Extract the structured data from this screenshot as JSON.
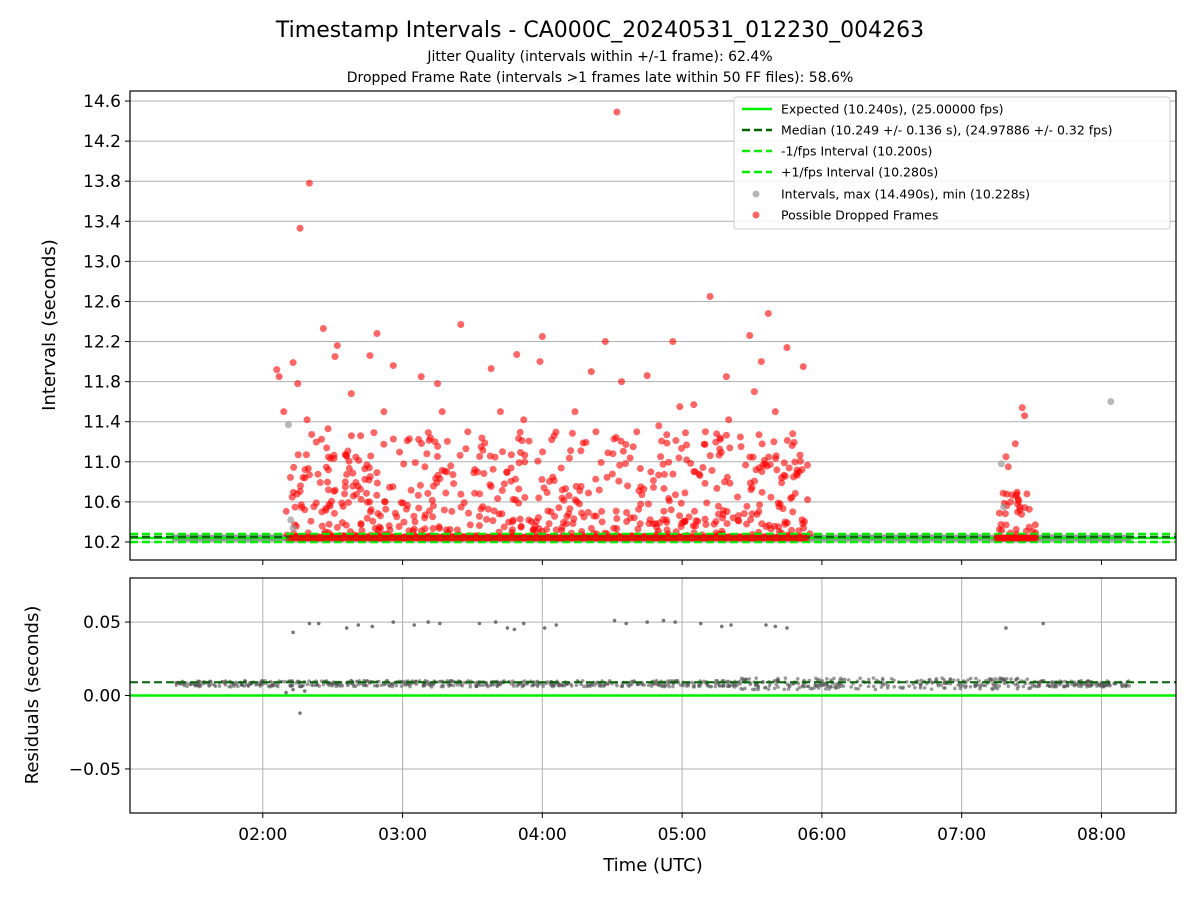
{
  "title": "Timestamp Intervals - CA000C_20240531_012230_004263",
  "subtitle1": "Jitter Quality (intervals within +/-1 frame): 62.4%",
  "subtitle2": "Dropped Frame Rate (intervals >1 frames late within 50 FF files): 58.6%",
  "colors": {
    "expected": "#00ee00",
    "median": "#006400",
    "fps_band": "#00ee00",
    "intervals": "#999999",
    "dropped": "#ff0000",
    "residual_points": "#555555",
    "grid": "#b0b0b0"
  },
  "chart_data": [
    {
      "type": "scatter",
      "panel": "intervals",
      "ylabel": "Intervals (seconds)",
      "xlabel": "",
      "x_range": [
        "01:03",
        "08:32"
      ],
      "ylim": [
        10.02,
        14.7
      ],
      "yticks": [
        "10.2",
        "10.6",
        "11.0",
        "11.4",
        "11.8",
        "12.2",
        "12.6",
        "13.0",
        "13.4",
        "13.8",
        "14.2",
        "14.6"
      ],
      "xticks": [
        "02:00",
        "03:00",
        "04:00",
        "05:00",
        "06:00",
        "07:00",
        "08:00"
      ],
      "grid": "horizontal",
      "legend_position": "top-right",
      "lines": [
        {
          "name": "Expected (10.240s), (25.00000 fps)",
          "y": 10.24,
          "style": "solid"
        },
        {
          "name": "Median (10.249 +/- 0.136 s), (24.97886 +/- 0.32 fps)",
          "y": 10.249,
          "style": "dashed"
        },
        {
          "name": "-1/fps Interval (10.200s)",
          "y": 10.2,
          "style": "dashed"
        },
        {
          "name": "+1/fps Interval (10.280s)",
          "y": 10.28,
          "style": "dashed"
        }
      ],
      "series": [
        {
          "name": "Intervals, max (14.490s), min (10.228s)",
          "baseline_ranges": [
            [
              "01:22",
              "08:12"
            ]
          ],
          "baseline_value": 10.24,
          "points": [
            [
              "02:11",
              11.37
            ],
            [
              "02:12",
              10.42
            ],
            [
              "02:13",
              10.34
            ],
            [
              "07:17",
              10.98
            ],
            [
              "07:18",
              10.55
            ],
            [
              "08:04",
              11.6
            ]
          ]
        },
        {
          "name": "Possible Dropped Frames",
          "dense_regions": [
            {
              "x_range": [
                "02:10",
                "05:55"
              ],
              "y_range": [
                10.24,
                11.3
              ],
              "count": 650
            },
            {
              "x_range": [
                "07:15",
                "07:32"
              ],
              "y_range": [
                10.24,
                10.7
              ],
              "count": 30
            }
          ],
          "baseline_range": [
            "02:12",
            "05:54"
          ],
          "points": [
            [
              "02:16",
              13.33
            ],
            [
              "02:20",
              13.78
            ],
            [
              "04:32",
              14.49
            ],
            [
              "05:12",
              12.65
            ],
            [
              "05:37",
              12.48
            ],
            [
              "02:26",
              12.33
            ],
            [
              "02:49",
              12.28
            ],
            [
              "03:25",
              12.37
            ],
            [
              "04:00",
              12.25
            ],
            [
              "04:27",
              12.2
            ],
            [
              "04:56",
              12.2
            ],
            [
              "05:29",
              12.26
            ],
            [
              "05:34",
              12.0
            ],
            [
              "05:45",
              12.14
            ],
            [
              "02:06",
              11.92
            ],
            [
              "02:07",
              11.85
            ],
            [
              "02:13",
              11.99
            ],
            [
              "02:15",
              11.78
            ],
            [
              "02:31",
              12.05
            ],
            [
              "02:32",
              12.16
            ],
            [
              "02:38",
              11.68
            ],
            [
              "02:46",
              12.06
            ],
            [
              "02:56",
              11.96
            ],
            [
              "03:08",
              11.85
            ],
            [
              "03:15",
              11.78
            ],
            [
              "03:38",
              11.93
            ],
            [
              "03:49",
              12.07
            ],
            [
              "03:59",
              12.0
            ],
            [
              "04:21",
              11.9
            ],
            [
              "04:34",
              11.8
            ],
            [
              "04:45",
              11.86
            ],
            [
              "05:05",
              11.57
            ],
            [
              "05:19",
              11.85
            ],
            [
              "05:31",
              11.7
            ],
            [
              "05:52",
              11.95
            ],
            [
              "02:09",
              11.5
            ],
            [
              "02:19",
              11.42
            ],
            [
              "02:28",
              11.33
            ],
            [
              "02:42",
              11.26
            ],
            [
              "02:52",
              11.5
            ],
            [
              "03:02",
              11.21
            ],
            [
              "03:17",
              11.5
            ],
            [
              "03:28",
              11.3
            ],
            [
              "03:42",
              11.5
            ],
            [
              "03:52",
              11.42
            ],
            [
              "04:04",
              11.22
            ],
            [
              "04:14",
              11.5
            ],
            [
              "04:23",
              11.3
            ],
            [
              "04:39",
              11.15
            ],
            [
              "04:50",
              11.36
            ],
            [
              "04:59",
              11.55
            ],
            [
              "05:10",
              11.3
            ],
            [
              "05:20",
              11.42
            ],
            [
              "05:33",
              11.27
            ],
            [
              "05:40",
              11.5
            ],
            [
              "07:19",
              11.05
            ],
            [
              "07:20",
              10.95
            ],
            [
              "07:23",
              11.18
            ],
            [
              "07:26",
              11.54
            ],
            [
              "07:27",
              11.46
            ],
            [
              "07:28",
              10.68
            ],
            [
              "07:21",
              10.6
            ],
            [
              "07:24",
              10.5
            ],
            [
              "07:25",
              10.52
            ]
          ]
        }
      ]
    },
    {
      "type": "scatter",
      "panel": "residuals",
      "ylabel": "Residuals (seconds)",
      "xlabel": "Time (UTC)",
      "x_range": [
        "01:03",
        "08:32"
      ],
      "ylim": [
        -0.08,
        0.08
      ],
      "yticks": [
        "−0.05",
        "0.00",
        "0.05"
      ],
      "ytick_values": [
        -0.05,
        0.0,
        0.05
      ],
      "xticks": [
        "02:00",
        "03:00",
        "04:00",
        "05:00",
        "06:00",
        "07:00",
        "08:00"
      ],
      "grid": "both",
      "lines": [
        {
          "name": "Expected",
          "y": 0.0,
          "style": "solid"
        },
        {
          "name": "Median",
          "y": 0.009,
          "style": "dashed"
        }
      ],
      "series": [
        {
          "name": "Residuals",
          "band": {
            "x_range": [
              "01:22",
              "08:12"
            ],
            "center": 0.008,
            "spread": 0.003,
            "count": 900
          },
          "points": [
            [
              "02:13",
              0.043
            ],
            [
              "02:16",
              -0.012
            ],
            [
              "02:20",
              0.049
            ],
            [
              "02:24",
              0.049
            ],
            [
              "02:36",
              0.046
            ],
            [
              "02:41",
              0.048
            ],
            [
              "02:47",
              0.047
            ],
            [
              "02:56",
              0.05
            ],
            [
              "03:05",
              0.048
            ],
            [
              "03:11",
              0.05
            ],
            [
              "03:16",
              0.049
            ],
            [
              "03:33",
              0.049
            ],
            [
              "03:40",
              0.05
            ],
            [
              "03:45",
              0.046
            ],
            [
              "03:48",
              0.045
            ],
            [
              "03:52",
              0.049
            ],
            [
              "04:01",
              0.046
            ],
            [
              "04:06",
              0.048
            ],
            [
              "04:31",
              0.051
            ],
            [
              "04:36",
              0.049
            ],
            [
              "04:45",
              0.05
            ],
            [
              "04:52",
              0.051
            ],
            [
              "04:57",
              0.05
            ],
            [
              "05:08",
              0.049
            ],
            [
              "05:17",
              0.047
            ],
            [
              "05:21",
              0.048
            ],
            [
              "05:36",
              0.048
            ],
            [
              "05:40",
              0.047
            ],
            [
              "05:45",
              0.046
            ],
            [
              "07:19",
              0.046
            ],
            [
              "07:35",
              0.049
            ],
            [
              "02:10",
              0.002
            ],
            [
              "02:13",
              0.004
            ],
            [
              "02:18",
              0.003
            ]
          ]
        }
      ]
    }
  ]
}
